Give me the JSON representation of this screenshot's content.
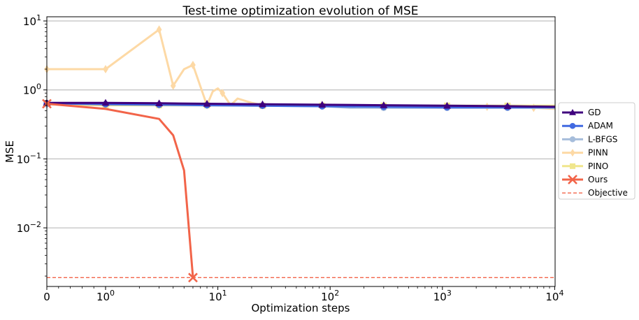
{
  "chart_data": {
    "type": "line",
    "title": "Test-time optimization evolution of MSE",
    "xlabel": "Optimization steps",
    "ylabel": "MSE",
    "x_scale": "symlog (linear between 0 and 1)",
    "y_scale": "log",
    "xlim": [
      0,
      10000
    ],
    "ylim": [
      0.0013,
      11
    ],
    "grid": "horizontal",
    "x_ticks": [
      {
        "value": 0,
        "base": "0",
        "exp": ""
      },
      {
        "value": 1,
        "base": "10",
        "exp": "0"
      },
      {
        "value": 10,
        "base": "10",
        "exp": "1"
      },
      {
        "value": 100,
        "base": "10",
        "exp": "2"
      },
      {
        "value": 1000,
        "base": "10",
        "exp": "3"
      },
      {
        "value": 10000,
        "base": "10",
        "exp": "4"
      }
    ],
    "y_ticks": [
      {
        "value": 10,
        "base": "10",
        "exp": "1"
      },
      {
        "value": 1,
        "base": "10",
        "exp": "0"
      },
      {
        "value": 0.1,
        "base": "10",
        "exp": "−1"
      },
      {
        "value": 0.01,
        "base": "10",
        "exp": "−2"
      }
    ],
    "legend_position": "right-center",
    "series": [
      {
        "name": "GD",
        "color": "#3f007d",
        "marker": "triangle",
        "x": [
          0,
          1,
          3,
          8,
          25,
          85,
          300,
          1100,
          3800,
          10000
        ],
        "y": [
          0.65,
          0.65,
          0.64,
          0.63,
          0.62,
          0.61,
          0.6,
          0.59,
          0.58,
          0.57
        ],
        "marker_x": [
          0,
          1,
          3,
          8,
          25,
          85,
          300,
          1100,
          3800
        ]
      },
      {
        "name": "ADAM",
        "color": "#4169e1",
        "marker": "circle",
        "x": [
          0,
          1,
          3,
          8,
          25,
          85,
          300,
          1100,
          3800,
          10000
        ],
        "y": [
          0.64,
          0.62,
          0.61,
          0.6,
          0.59,
          0.58,
          0.57,
          0.56,
          0.56,
          0.56
        ],
        "marker_x": [
          0,
          1,
          3,
          8,
          25,
          85,
          300,
          1100,
          3800
        ]
      },
      {
        "name": "L-BFGS",
        "color": "#a6bddb",
        "marker": "circle",
        "x": [
          0,
          1,
          3,
          8,
          25,
          85,
          150,
          300,
          1100,
          3800,
          10000
        ],
        "y": [
          0.62,
          0.6,
          0.6,
          0.6,
          0.59,
          0.58,
          0.55,
          0.55,
          0.55,
          0.55,
          0.55
        ],
        "marker_x": [
          0,
          1,
          3,
          8,
          25,
          85,
          300,
          1100,
          3800
        ]
      },
      {
        "name": "PINN",
        "color": "#fdd9a5",
        "marker": "diamond",
        "x": [
          0,
          1,
          3,
          4,
          5,
          6,
          8,
          9,
          10,
          11,
          13,
          15,
          20,
          25,
          30,
          85,
          300,
          1100,
          2500,
          3800,
          6500,
          10000
        ],
        "y": [
          2.0,
          2.0,
          7.5,
          1.15,
          2.0,
          2.3,
          0.6,
          0.95,
          1.05,
          0.9,
          0.6,
          0.75,
          0.65,
          0.6,
          0.6,
          0.6,
          0.59,
          0.58,
          0.57,
          0.57,
          0.55,
          0.53
        ],
        "marker_x": [
          0,
          1,
          3,
          4,
          6,
          8,
          11,
          25,
          85,
          300,
          1100,
          2500,
          3800,
          6500
        ]
      },
      {
        "name": "PINO",
        "color": "#f0e68c",
        "marker": "square",
        "x": [
          0,
          1,
          3,
          8,
          25,
          85,
          300,
          1100,
          3800,
          10000
        ],
        "y": [
          0.62,
          0.6,
          0.6,
          0.6,
          0.59,
          0.59,
          0.59,
          0.59,
          0.59,
          0.59
        ],
        "marker_x": [
          1,
          3,
          8,
          25,
          85,
          300,
          1100,
          3800
        ]
      },
      {
        "name": "Ours",
        "color": "#f26449",
        "marker": "x",
        "x": [
          0,
          1,
          3,
          4,
          5,
          6
        ],
        "y": [
          0.63,
          0.53,
          0.38,
          0.22,
          0.068,
          0.0019
        ],
        "marker_x": [
          0,
          6
        ]
      },
      {
        "name": "Objective",
        "color": "#f26449",
        "marker": "none",
        "dashed": true,
        "x": [
          0,
          10000
        ],
        "y": [
          0.0019,
          0.0019
        ],
        "marker_x": []
      }
    ]
  }
}
